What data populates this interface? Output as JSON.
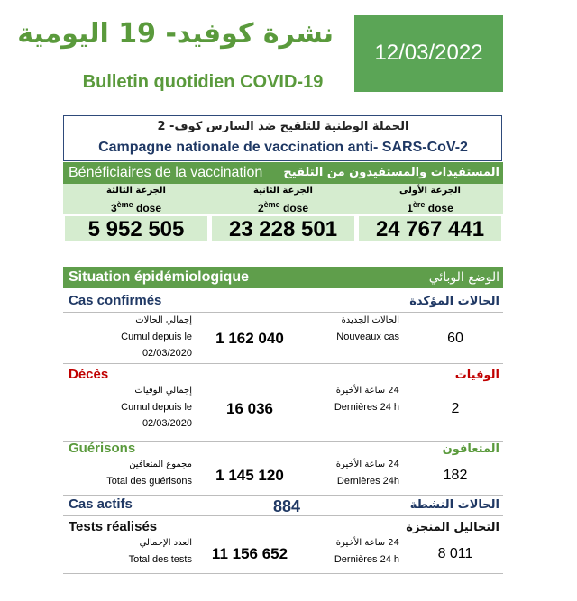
{
  "header": {
    "title_ar": "نشرة كوفيد- 19 اليومية",
    "title_fr": "Bulletin quotidien COVID-19",
    "date": "12/03/2022"
  },
  "campaign": {
    "title_ar": "الحملة الوطنية للتلقيح ضد السارس كوف- 2",
    "title_fr": "Campagne nationale de vaccination anti- SARS-CoV-2"
  },
  "vaccination": {
    "label_fr": "Bénéficiaires de la vaccination",
    "label_ar": "المستفيدات والمستفيدون من التلقيح",
    "doses": [
      {
        "label_ar": "الجرعة الثالثة",
        "ordinal": "3",
        "suffix": "ème",
        "word": "dose",
        "value": "5 952 505"
      },
      {
        "label_ar": "الجرعة الثانية",
        "ordinal": "2",
        "suffix": "ème",
        "word": "dose",
        "value": "23 228 501"
      },
      {
        "label_ar": "الجرعة الأولى",
        "ordinal": "1",
        "suffix": "ère",
        "word": "dose",
        "value": "24 767 441"
      }
    ]
  },
  "situation": {
    "label_fr": "Situation épidémiologique",
    "label_ar": "الوضع الوبائي"
  },
  "confirmed": {
    "title_fr": "Cas confirmés",
    "title_ar": "الحالات المؤكدة",
    "total": {
      "label_ar": "إجمالي الحالات",
      "label_fr": "Cumul depuis le",
      "since": "02/03/2020",
      "value": "1 162 040"
    },
    "recent": {
      "label_ar": "الحالات الجديدة",
      "label_fr": "Nouveaux cas",
      "value": "60"
    }
  },
  "deaths": {
    "title_fr": "Décès",
    "title_ar": "الوفيات",
    "total": {
      "label_ar": "إجمالي الوفيات",
      "label_fr": "Cumul depuis le",
      "since": "02/03/2020",
      "value": "16 036"
    },
    "recent": {
      "label_ar": "24 ساعة الأخيرة",
      "label_fr": "Dernières 24 h",
      "value": "2"
    }
  },
  "recoveries": {
    "title_fr": "Guérisons",
    "title_ar": "المتعافون",
    "total": {
      "label_ar": "مجموع المتعافين",
      "label_fr": "Total des guérisons",
      "value": "1 145 120"
    },
    "recent": {
      "label_ar": "24 ساعة الأخيرة",
      "label_fr": "Dernières 24h",
      "value": "182"
    }
  },
  "active": {
    "title_fr": "Cas actifs",
    "title_ar": "الحالات النشطة",
    "value": "884"
  },
  "tests": {
    "title_fr": "Tests réalisés",
    "title_ar": "التحاليل المنجزة",
    "total": {
      "label_ar": "العدد الإجمالي",
      "label_fr": "Total des tests",
      "value": "11 156 652"
    },
    "recent": {
      "label_ar": "24 ساعة الأخيرة",
      "label_fr": "Dernières 24 h",
      "value": "8 011"
    }
  }
}
